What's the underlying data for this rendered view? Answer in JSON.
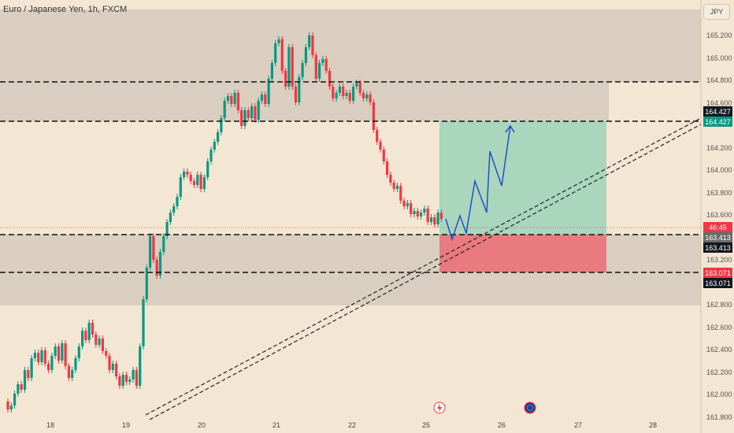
{
  "header": {
    "symbol_title": "Euro / Japanese Yen, 1h, FXCM",
    "currency_button": "JPY"
  },
  "price_axis": {
    "ticks": [
      "165.200",
      "165.000",
      "164.800",
      "164.600",
      "164.200",
      "164.000",
      "163.800",
      "163.600",
      "163.200",
      "162.800",
      "162.600",
      "162.400",
      "162.200",
      "162.000",
      "161.800"
    ],
    "tick_values": [
      165.2,
      165.0,
      164.8,
      164.6,
      164.2,
      164.0,
      163.8,
      163.6,
      163.2,
      162.8,
      162.6,
      162.4,
      162.2,
      162.0,
      161.8
    ]
  },
  "time_axis": {
    "labels": [
      "18",
      "19",
      "20",
      "21",
      "22",
      "25",
      "26",
      "27",
      "28"
    ]
  },
  "price_tags": {
    "upper_1": "164.427",
    "upper_2": "164.427",
    "countdown": "46:45",
    "mid_1": "163.413",
    "mid_2": "163.413",
    "low_1": "163.071",
    "low_2": "163.071"
  },
  "levels": {
    "target": 164.427,
    "entry": 163.413,
    "stop": 163.071,
    "resistance": 164.78
  },
  "colors": {
    "up": "#089981",
    "down": "#f23645",
    "profit_zone": "#a9d6bd",
    "loss_zone": "#e97a80",
    "sr_zone": "#d9cebf",
    "projection": "#2050c8",
    "bg": "#f3e6d3"
  },
  "icons": {
    "event_1": "lightning-icon",
    "event_2": "flag-eu-icon"
  }
}
